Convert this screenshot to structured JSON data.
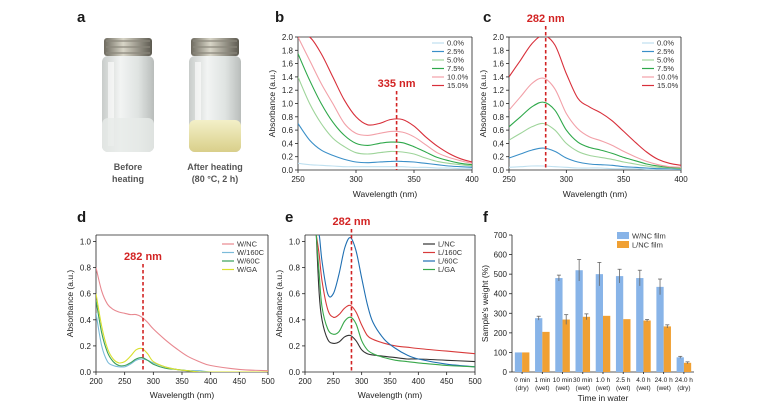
{
  "figure": {
    "panel_a": {
      "letter": "a",
      "before_caption": [
        "Before",
        "heating"
      ],
      "after_caption": [
        "After heating",
        "(80 °C, 2 h)"
      ]
    }
  },
  "colors": {
    "c0": "#bfe0f0",
    "c25": "#3a8fc8",
    "c5": "#9ed49a",
    "c75": "#2ea84a",
    "c10": "#f2a0a8",
    "c15": "#d82f3a",
    "wnc": "#e88890",
    "w160": "#7bbbd9",
    "w60": "#3aa05a",
    "wga": "#d9e02e",
    "lnc": "#333333",
    "l160": "#d83a3a",
    "l60": "#1f6fb2",
    "lga": "#38a84a",
    "peak": "#d22323",
    "bar_w": "#88b4e8",
    "bar_l": "#f0a033"
  },
  "chart_data": [
    {
      "panel": "b",
      "type": "line",
      "xlabel": "Wavelength (nm)",
      "ylabel": "Absorbance (a.u.)",
      "xlim": [
        250,
        400
      ],
      "ylim": [
        0,
        2.0
      ],
      "xticks": [
        "250",
        "300",
        "350",
        "400"
      ],
      "yticks": [
        "0.0",
        "0.2",
        "0.4",
        "0.6",
        "0.8",
        "1.0",
        "1.2",
        "1.4",
        "1.6",
        "1.8",
        "2.0"
      ],
      "peak_label": "335 nm",
      "peak_x": 335,
      "x": [
        250,
        260,
        270,
        280,
        290,
        300,
        310,
        320,
        330,
        340,
        350,
        360,
        370,
        380,
        390,
        400
      ],
      "series": [
        {
          "name": "0.0%",
          "color": "c0",
          "values": [
            0.1,
            0.08,
            0.07,
            0.06,
            0.05,
            0.05,
            0.05,
            0.05,
            0.05,
            0.05,
            0.04,
            0.04,
            0.03,
            0.03,
            0.02,
            0.02
          ]
        },
        {
          "name": "2.5%",
          "color": "c25",
          "values": [
            0.7,
            0.45,
            0.3,
            0.22,
            0.16,
            0.12,
            0.11,
            0.12,
            0.13,
            0.13,
            0.12,
            0.1,
            0.08,
            0.06,
            0.05,
            0.04
          ]
        },
        {
          "name": "5.0%",
          "color": "c5",
          "values": [
            1.4,
            1.0,
            0.7,
            0.48,
            0.35,
            0.26,
            0.24,
            0.26,
            0.28,
            0.27,
            0.24,
            0.18,
            0.13,
            0.1,
            0.08,
            0.06
          ]
        },
        {
          "name": "7.5%",
          "color": "c75",
          "values": [
            1.75,
            1.35,
            1.0,
            0.72,
            0.52,
            0.4,
            0.37,
            0.4,
            0.42,
            0.41,
            0.35,
            0.27,
            0.19,
            0.14,
            0.1,
            0.08
          ]
        },
        {
          "name": "10.0%",
          "color": "c10",
          "values": [
            2.0,
            1.65,
            1.3,
            1.0,
            0.7,
            0.55,
            0.52,
            0.55,
            0.58,
            0.57,
            0.5,
            0.38,
            0.26,
            0.19,
            0.14,
            0.1
          ]
        },
        {
          "name": "15.0%",
          "color": "c15",
          "values": [
            2.0,
            2.0,
            1.75,
            1.4,
            1.05,
            0.8,
            0.68,
            0.7,
            0.76,
            0.76,
            0.66,
            0.5,
            0.36,
            0.25,
            0.17,
            0.12
          ]
        }
      ]
    },
    {
      "panel": "c",
      "type": "line",
      "xlabel": "Wavelength (nm)",
      "ylabel": "Absorbance (a.u.)",
      "xlim": [
        250,
        400
      ],
      "ylim": [
        0,
        2.0
      ],
      "xticks": [
        "250",
        "300",
        "350",
        "400"
      ],
      "yticks": [
        "0.0",
        "0.2",
        "0.4",
        "0.6",
        "0.8",
        "1.0",
        "1.2",
        "1.4",
        "1.6",
        "1.8",
        "2.0"
      ],
      "peak_label": "282 nm",
      "peak_x": 282,
      "x": [
        250,
        260,
        270,
        280,
        290,
        300,
        310,
        320,
        330,
        340,
        350,
        360,
        370,
        380,
        390,
        400
      ],
      "series": [
        {
          "name": "0.0%",
          "color": "c0",
          "values": [
            0.04,
            0.05,
            0.06,
            0.06,
            0.05,
            0.04,
            0.03,
            0.03,
            0.03,
            0.02,
            0.02,
            0.02,
            0.01,
            0.01,
            0.01,
            0.01
          ]
        },
        {
          "name": "2.5%",
          "color": "c25",
          "values": [
            0.18,
            0.24,
            0.3,
            0.33,
            0.28,
            0.18,
            0.12,
            0.09,
            0.08,
            0.07,
            0.05,
            0.04,
            0.03,
            0.02,
            0.02,
            0.01
          ]
        },
        {
          "name": "5.0%",
          "color": "c5",
          "values": [
            0.45,
            0.55,
            0.65,
            0.7,
            0.6,
            0.4,
            0.28,
            0.22,
            0.19,
            0.16,
            0.12,
            0.09,
            0.06,
            0.04,
            0.03,
            0.02
          ]
        },
        {
          "name": "7.5%",
          "color": "c75",
          "values": [
            0.65,
            0.8,
            0.95,
            1.02,
            0.9,
            0.6,
            0.42,
            0.34,
            0.3,
            0.25,
            0.19,
            0.14,
            0.09,
            0.06,
            0.04,
            0.03
          ]
        },
        {
          "name": "10.0%",
          "color": "c10",
          "values": [
            0.9,
            1.1,
            1.3,
            1.38,
            1.22,
            0.85,
            0.62,
            0.5,
            0.44,
            0.37,
            0.28,
            0.2,
            0.13,
            0.08,
            0.05,
            0.04
          ]
        },
        {
          "name": "15.0%",
          "color": "c15",
          "values": [
            1.4,
            1.65,
            1.9,
            2.02,
            1.88,
            1.45,
            1.08,
            0.95,
            0.86,
            0.74,
            0.58,
            0.42,
            0.27,
            0.16,
            0.1,
            0.07
          ]
        }
      ]
    },
    {
      "panel": "d",
      "type": "line",
      "xlabel": "Wavelength (nm)",
      "ylabel": "Absorbance (a.u.)",
      "xlim": [
        200,
        500
      ],
      "ylim": [
        0,
        1.05
      ],
      "xticks": [
        "200",
        "250",
        "300",
        "350",
        "400",
        "450",
        "500"
      ],
      "yticks": [
        "0.0",
        "0.2",
        "0.4",
        "0.6",
        "0.8",
        "1.0"
      ],
      "peak_label": "282 nm",
      "peak_x": 282,
      "x": [
        200,
        210,
        220,
        230,
        240,
        250,
        260,
        270,
        280,
        290,
        300,
        320,
        340,
        360,
        380,
        400,
        450,
        500
      ],
      "series": [
        {
          "name": "W/NC",
          "color": "wnc",
          "values": [
            0.8,
            0.62,
            0.52,
            0.48,
            0.46,
            0.45,
            0.44,
            0.44,
            0.42,
            0.38,
            0.33,
            0.25,
            0.18,
            0.12,
            0.08,
            0.05,
            0.02,
            0.01
          ]
        },
        {
          "name": "W/160C",
          "color": "w160",
          "values": [
            0.45,
            0.2,
            0.08,
            0.05,
            0.04,
            0.04,
            0.06,
            0.09,
            0.1,
            0.09,
            0.07,
            0.04,
            0.02,
            0.01,
            0.01,
            0.0,
            0.0,
            0.0
          ]
        },
        {
          "name": "W/60C",
          "color": "w60",
          "values": [
            0.55,
            0.3,
            0.15,
            0.08,
            0.05,
            0.05,
            0.07,
            0.1,
            0.11,
            0.09,
            0.06,
            0.03,
            0.02,
            0.01,
            0.0,
            0.0,
            0.0,
            0.0
          ]
        },
        {
          "name": "W/GA",
          "color": "wga",
          "values": [
            0.6,
            0.35,
            0.18,
            0.1,
            0.07,
            0.08,
            0.12,
            0.17,
            0.18,
            0.14,
            0.08,
            0.04,
            0.02,
            0.01,
            0.0,
            0.0,
            0.0,
            0.0
          ]
        }
      ]
    },
    {
      "panel": "e",
      "type": "line",
      "xlabel": "Wavelength (nm)",
      "ylabel": "Absorbance (a.u.)",
      "xlim": [
        200,
        500
      ],
      "ylim": [
        0,
        1.05
      ],
      "xticks": [
        "200",
        "250",
        "300",
        "350",
        "400",
        "450",
        "500"
      ],
      "yticks": [
        "0.0",
        "0.2",
        "0.4",
        "0.6",
        "0.8",
        "1.0"
      ],
      "peak_label": "282 nm",
      "peak_x": 282,
      "x": [
        220,
        225,
        230,
        240,
        250,
        260,
        270,
        280,
        290,
        300,
        310,
        320,
        340,
        360,
        380,
        400,
        450,
        500
      ],
      "series": [
        {
          "name": "L/NC",
          "color": "lnc",
          "values": [
            1.05,
            0.6,
            0.4,
            0.25,
            0.22,
            0.23,
            0.27,
            0.28,
            0.24,
            0.17,
            0.14,
            0.13,
            0.12,
            0.11,
            0.1,
            0.1,
            0.09,
            0.08
          ]
        },
        {
          "name": "L/160C",
          "color": "l160",
          "values": [
            1.05,
            0.9,
            0.7,
            0.48,
            0.42,
            0.44,
            0.49,
            0.51,
            0.46,
            0.36,
            0.28,
            0.25,
            0.22,
            0.2,
            0.19,
            0.18,
            0.16,
            0.14
          ]
        },
        {
          "name": "L/60C",
          "color": "l60",
          "values": [
            1.05,
            1.05,
            0.85,
            0.6,
            0.6,
            0.75,
            0.95,
            1.03,
            0.93,
            0.72,
            0.52,
            0.38,
            0.25,
            0.18,
            0.13,
            0.1,
            0.06,
            0.04
          ]
        },
        {
          "name": "L/GA",
          "color": "lga",
          "values": [
            1.05,
            0.75,
            0.5,
            0.33,
            0.29,
            0.31,
            0.39,
            0.42,
            0.37,
            0.24,
            0.17,
            0.14,
            0.11,
            0.09,
            0.08,
            0.07,
            0.05,
            0.04
          ]
        }
      ]
    },
    {
      "panel": "f",
      "type": "bar",
      "xlabel": "Time in water",
      "ylabel": "Sample's weight (%)",
      "ylim": [
        0,
        700
      ],
      "yticks": [
        "0",
        "100",
        "200",
        "300",
        "400",
        "500",
        "600",
        "700"
      ],
      "categories": [
        [
          "0 min",
          "(dry)"
        ],
        [
          "1 min",
          "(wet)"
        ],
        [
          "10 min",
          "(wet)"
        ],
        [
          "30 min",
          "(wet)"
        ],
        [
          "1.0 h",
          "(wet)"
        ],
        [
          "2.5 h",
          "(wet)"
        ],
        [
          "4.0 h",
          "(wet)"
        ],
        [
          "24.0 h",
          "(wet)"
        ],
        [
          "24.0 h",
          "(dry)"
        ]
      ],
      "series": [
        {
          "name": "W/NC film",
          "color": "bar_w",
          "values": [
            100,
            275,
            480,
            520,
            500,
            490,
            480,
            435,
            75
          ],
          "errors": [
            0,
            10,
            15,
            55,
            60,
            35,
            40,
            40,
            5
          ]
        },
        {
          "name": "L/NC film",
          "color": "bar_l",
          "values": [
            100,
            205,
            268,
            282,
            287,
            270,
            263,
            233,
            47
          ],
          "errors": [
            0,
            0,
            25,
            15,
            0,
            0,
            5,
            8,
            5
          ]
        }
      ]
    }
  ]
}
